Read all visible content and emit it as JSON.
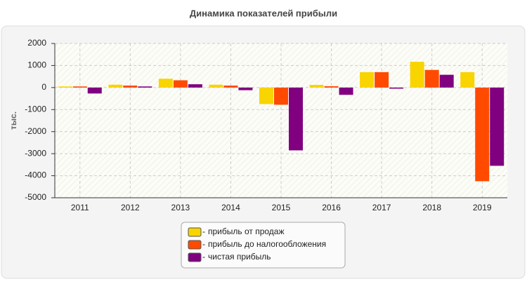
{
  "chart_data": {
    "type": "bar",
    "title": "Динамика показателей прибыли",
    "y_label": "тыс.",
    "categories": [
      "2011",
      "2012",
      "2013",
      "2014",
      "2015",
      "2016",
      "2017",
      "2018",
      "2019"
    ],
    "series": [
      {
        "name": "прибыль от продаж",
        "color": "#f8d400",
        "values": [
          50,
          130,
          400,
          130,
          -750,
          120,
          700,
          1170,
          700
        ]
      },
      {
        "name": "прибыль до налогообложения",
        "color": "#ff4a00",
        "values": [
          50,
          90,
          330,
          90,
          -780,
          60,
          700,
          800,
          -4250
        ]
      },
      {
        "name": "чистая прибыль",
        "color": "#80007f",
        "values": [
          -270,
          50,
          150,
          -120,
          -2850,
          -330,
          -50,
          580,
          -3550
        ]
      }
    ],
    "ylim": [
      -5000,
      2000
    ],
    "yticks": [
      -5000,
      -4000,
      -3000,
      -2000,
      -1000,
      0,
      1000,
      2000
    ],
    "grid": true
  }
}
